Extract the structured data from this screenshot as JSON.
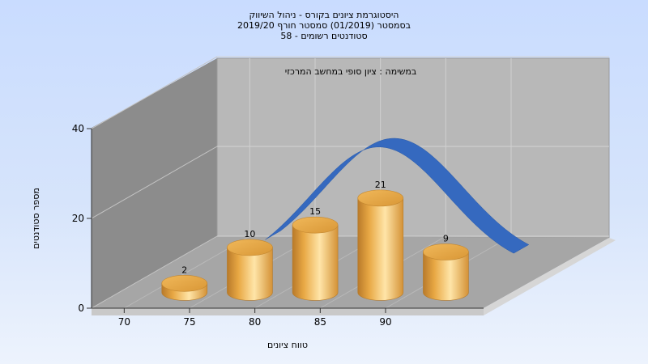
{
  "chart_data": {
    "type": "bar",
    "title_lines": [
      "היסטוגרמת ציונים בקורס - ניהול השיווק",
      "בסמסטר  (01/2019)  סמסטר חורף 2019/20",
      "סטודנטים רשומים - 58"
    ],
    "subtitle": "במשימה : ציון סופי במחשב המרכזי",
    "xlabel": "טווח ציונים",
    "ylabel": "מספר סטודנטים",
    "x_ticks": [
      "70",
      "75",
      "80",
      "85",
      "90"
    ],
    "y_ticks": [
      "0",
      "20",
      "40"
    ],
    "ylim": [
      0,
      40
    ],
    "categories": [
      "70-75",
      "75-80",
      "80-85",
      "85-90",
      "90-95"
    ],
    "values": [
      2,
      10,
      15,
      21,
      9
    ],
    "curve_color": "#3569bf",
    "bar_color": "#e3a23f",
    "grid": true
  }
}
